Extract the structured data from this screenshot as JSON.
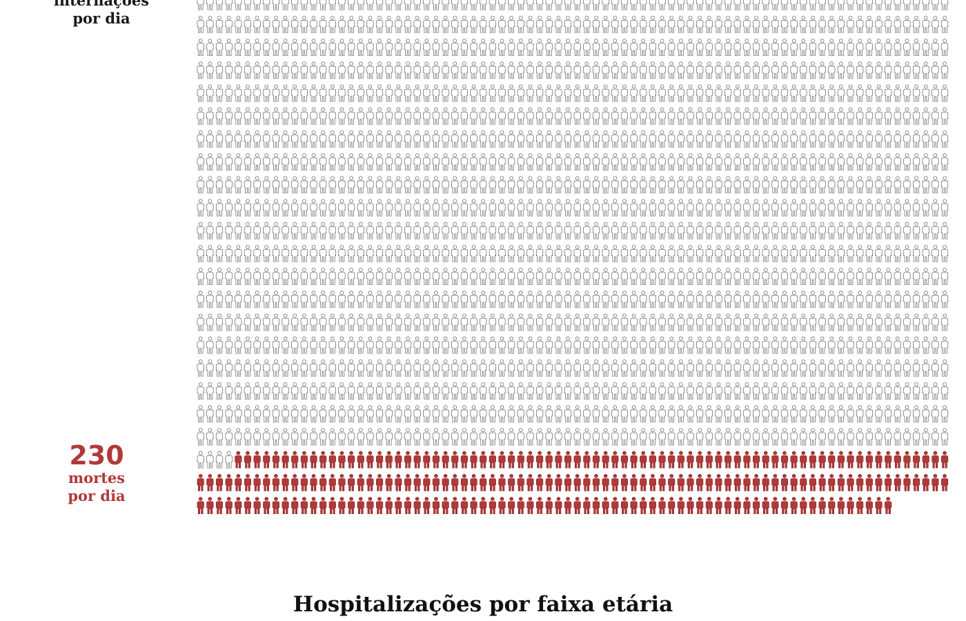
{
  "colors": {
    "hospitalized": "#ffffff",
    "hospitalized_stroke": "#555555",
    "death": "#b03a3a",
    "death_stroke": "#8a2020",
    "text": "#1a1a1a"
  },
  "hospitalizations_label": {
    "line1": "internações",
    "line2": "por dia"
  },
  "deaths_label": {
    "value": "230",
    "line1": "mortes",
    "line2": "por dia"
  },
  "section_title": "Hospitalizações por faixa etária",
  "chart_data": {
    "type": "pictogram",
    "unit": "person",
    "icons_per_row": 80,
    "total_icons": 2154,
    "series": [
      {
        "name": "internações por dia",
        "count": 1924,
        "color": "#ffffff"
      },
      {
        "name": "mortes por dia",
        "count": 230,
        "color": "#b03a3a"
      }
    ]
  }
}
